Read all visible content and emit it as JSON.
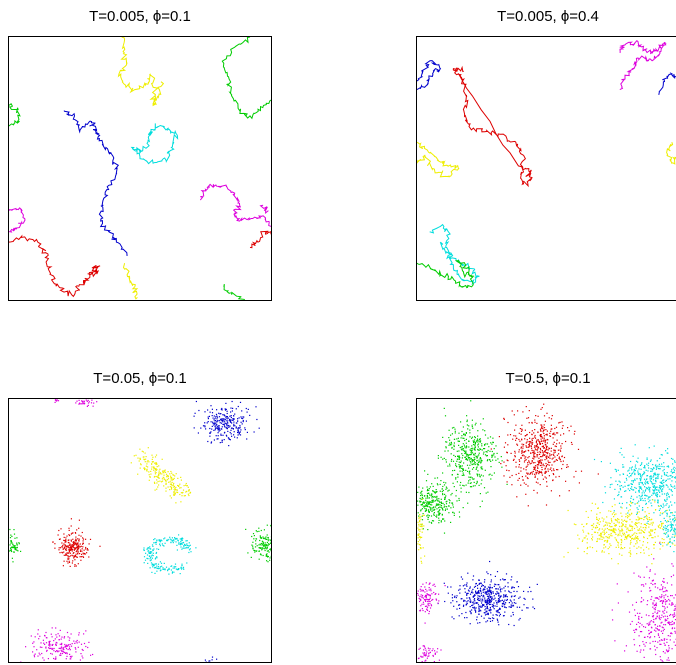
{
  "chart_data": [
    {
      "type": "scatter",
      "title": "T=0.005, ϕ=0.1",
      "xlim": [
        0,
        1
      ],
      "ylim": [
        0,
        1
      ],
      "grid": false,
      "legend": "none",
      "style": "line",
      "series": [
        {
          "color": "#0000cc",
          "points": [
            [
              0.21,
              0.72
            ],
            [
              0.25,
              0.7
            ],
            [
              0.27,
              0.64
            ],
            [
              0.31,
              0.68
            ],
            [
              0.33,
              0.66
            ],
            [
              0.34,
              0.62
            ],
            [
              0.37,
              0.58
            ],
            [
              0.4,
              0.54
            ],
            [
              0.41,
              0.48
            ],
            [
              0.38,
              0.42
            ],
            [
              0.36,
              0.36
            ],
            [
              0.35,
              0.3
            ],
            [
              0.38,
              0.26
            ],
            [
              0.41,
              0.22
            ],
            [
              0.45,
              0.17
            ]
          ]
        },
        {
          "color": "#00dddd",
          "points": [
            [
              0.47,
              0.58
            ],
            [
              0.5,
              0.56
            ],
            [
              0.53,
              0.6
            ],
            [
              0.54,
              0.64
            ],
            [
              0.57,
              0.66
            ],
            [
              0.61,
              0.65
            ],
            [
              0.64,
              0.63
            ],
            [
              0.62,
              0.58
            ],
            [
              0.6,
              0.53
            ],
            [
              0.55,
              0.52
            ],
            [
              0.5,
              0.54
            ],
            [
              0.47,
              0.58
            ]
          ]
        },
        {
          "color": "#eeee00",
          "points": [
            [
              0.43,
              1.0
            ],
            [
              0.44,
              0.94
            ],
            [
              0.45,
              0.9
            ],
            [
              0.42,
              0.86
            ],
            [
              0.44,
              0.82
            ],
            [
              0.48,
              0.8
            ],
            [
              0.53,
              0.82
            ],
            [
              0.54,
              0.86
            ],
            [
              0.56,
              0.78
            ],
            [
              0.55,
              0.74
            ],
            [
              0.57,
              0.77
            ],
            [
              0.58,
              0.83
            ]
          ]
        },
        {
          "color": "#eeee00",
          "points": [
            [
              0.44,
              0.14
            ],
            [
              0.46,
              0.09
            ],
            [
              0.48,
              0.05
            ],
            [
              0.49,
              0.01
            ]
          ]
        },
        {
          "color": "#00cc00",
          "points": [
            [
              0.92,
              1.0
            ],
            [
              0.86,
              0.96
            ],
            [
              0.82,
              0.9
            ],
            [
              0.84,
              0.84
            ],
            [
              0.85,
              0.78
            ],
            [
              0.88,
              0.72
            ],
            [
              0.92,
              0.7
            ],
            [
              0.96,
              0.72
            ],
            [
              1.0,
              0.76
            ]
          ]
        },
        {
          "color": "#00cc00",
          "points": [
            [
              0.82,
              0.05
            ],
            [
              0.85,
              0.02
            ],
            [
              0.9,
              0.0
            ]
          ]
        },
        {
          "color": "#00cc00",
          "points": [
            [
              0.0,
              0.74
            ],
            [
              0.03,
              0.72
            ],
            [
              0.04,
              0.68
            ],
            [
              0.0,
              0.66
            ]
          ]
        },
        {
          "color": "#dd00dd",
          "points": [
            [
              0.73,
              0.38
            ],
            [
              0.75,
              0.42
            ],
            [
              0.78,
              0.44
            ],
            [
              0.83,
              0.43
            ],
            [
              0.86,
              0.4
            ],
            [
              0.88,
              0.36
            ],
            [
              0.86,
              0.33
            ],
            [
              0.88,
              0.3
            ],
            [
              0.93,
              0.31
            ],
            [
              0.97,
              0.32
            ],
            [
              1.0,
              0.28
            ]
          ]
        },
        {
          "color": "#dd00dd",
          "points": [
            [
              0.0,
              0.34
            ],
            [
              0.04,
              0.35
            ],
            [
              0.06,
              0.31
            ],
            [
              0.03,
              0.27
            ],
            [
              0.0,
              0.26
            ]
          ]
        },
        {
          "color": "#dd00dd",
          "points": [
            [
              0.97,
              0.36
            ],
            [
              0.99,
              0.34
            ]
          ]
        },
        {
          "color": "#dd0000",
          "points": [
            [
              0.0,
              0.22
            ],
            [
              0.06,
              0.24
            ],
            [
              0.11,
              0.22
            ],
            [
              0.14,
              0.18
            ],
            [
              0.15,
              0.12
            ],
            [
              0.18,
              0.06
            ],
            [
              0.21,
              0.03
            ],
            [
              0.25,
              0.02
            ],
            [
              0.27,
              0.06
            ],
            [
              0.3,
              0.08
            ],
            [
              0.33,
              0.13
            ],
            [
              0.34,
              0.11
            ],
            [
              0.3,
              0.1
            ]
          ]
        },
        {
          "color": "#dd0000",
          "points": [
            [
              0.92,
              0.2
            ],
            [
              0.95,
              0.22
            ],
            [
              0.97,
              0.26
            ],
            [
              1.0,
              0.25
            ]
          ]
        }
      ]
    },
    {
      "type": "scatter",
      "title": "T=0.005, ϕ=0.4",
      "xlim": [
        0,
        1
      ],
      "ylim": [
        0,
        1
      ],
      "grid": false,
      "legend": "none",
      "style": "line",
      "series": [
        {
          "color": "#0000cc",
          "points": [
            [
              0.0,
              0.8
            ],
            [
              0.04,
              0.82
            ],
            [
              0.06,
              0.86
            ],
            [
              0.09,
              0.88
            ],
            [
              0.05,
              0.91
            ],
            [
              0.02,
              0.86
            ],
            [
              0.0,
              0.83
            ]
          ]
        },
        {
          "color": "#0000cc",
          "points": [
            [
              0.93,
              0.78
            ],
            [
              0.95,
              0.84
            ],
            [
              0.98,
              0.86
            ],
            [
              1.0,
              0.84
            ]
          ]
        },
        {
          "color": "#dd0000",
          "points": [
            [
              0.16,
              0.86
            ],
            [
              0.18,
              0.84
            ],
            [
              0.19,
              0.78
            ],
            [
              0.18,
              0.72
            ],
            [
              0.2,
              0.66
            ],
            [
              0.26,
              0.64
            ],
            [
              0.32,
              0.63
            ],
            [
              0.38,
              0.6
            ],
            [
              0.41,
              0.55
            ],
            [
              0.4,
              0.48
            ],
            [
              0.41,
              0.44
            ],
            [
              0.44,
              0.46
            ],
            [
              0.43,
              0.49
            ],
            [
              0.39,
              0.51
            ],
            [
              0.16,
              0.86
            ],
            [
              0.14,
              0.88
            ],
            [
              0.18,
              0.87
            ]
          ]
        },
        {
          "color": "#dd00dd",
          "points": [
            [
              0.78,
              0.94
            ],
            [
              0.8,
              0.97
            ],
            [
              0.84,
              0.98
            ],
            [
              0.87,
              0.96
            ],
            [
              0.9,
              0.94
            ],
            [
              0.92,
              0.95
            ],
            [
              0.95,
              0.98
            ],
            [
              0.93,
              0.93
            ],
            [
              0.89,
              0.91
            ],
            [
              0.85,
              0.92
            ],
            [
              0.83,
              0.88
            ],
            [
              0.8,
              0.84
            ],
            [
              0.78,
              0.8
            ]
          ]
        },
        {
          "color": "#eeee00",
          "points": [
            [
              0.0,
              0.6
            ],
            [
              0.04,
              0.57
            ],
            [
              0.08,
              0.53
            ],
            [
              0.12,
              0.51
            ],
            [
              0.16,
              0.5
            ],
            [
              0.11,
              0.47
            ],
            [
              0.06,
              0.5
            ],
            [
              0.03,
              0.55
            ],
            [
              0.0,
              0.52
            ]
          ]
        },
        {
          "color": "#eeee00",
          "points": [
            [
              0.98,
              0.6
            ],
            [
              0.96,
              0.56
            ],
            [
              0.98,
              0.52
            ],
            [
              1.0,
              0.55
            ]
          ]
        },
        {
          "color": "#00dddd",
          "points": [
            [
              0.05,
              0.26
            ],
            [
              0.09,
              0.28
            ],
            [
              0.12,
              0.26
            ],
            [
              0.11,
              0.2
            ],
            [
              0.13,
              0.16
            ],
            [
              0.17,
              0.14
            ],
            [
              0.2,
              0.12
            ],
            [
              0.24,
              0.09
            ],
            [
              0.21,
              0.07
            ],
            [
              0.17,
              0.08
            ],
            [
              0.14,
              0.12
            ],
            [
              0.12,
              0.17
            ],
            [
              0.09,
              0.22
            ]
          ]
        },
        {
          "color": "#00cc00",
          "points": [
            [
              0.0,
              0.14
            ],
            [
              0.05,
              0.12
            ],
            [
              0.09,
              0.1
            ],
            [
              0.13,
              0.08
            ],
            [
              0.17,
              0.05
            ],
            [
              0.21,
              0.05
            ],
            [
              0.2,
              0.11
            ],
            [
              0.16,
              0.15
            ],
            [
              0.18,
              0.1
            ],
            [
              0.22,
              0.09
            ]
          ]
        }
      ]
    },
    {
      "type": "scatter",
      "title": "T=0.05, ϕ=0.1",
      "xlim": [
        0,
        1
      ],
      "ylim": [
        0,
        1
      ],
      "grid": false,
      "legend": "none",
      "style": "cloud",
      "clusters": [
        {
          "color": "#0000cc",
          "cx": 0.82,
          "cy": 0.91,
          "sx": 0.04,
          "sy": 0.035,
          "n": 260,
          "seed": 11
        },
        {
          "color": "#eeee00",
          "cx": 0.58,
          "cy": 0.71,
          "sx": 0.05,
          "sy": 0.04,
          "n": 220,
          "seed": 12,
          "stretch": [
            0.08,
            -0.07
          ]
        },
        {
          "color": "#dd0000",
          "cx": 0.24,
          "cy": 0.44,
          "sx": 0.03,
          "sy": 0.03,
          "n": 240,
          "seed": 13
        },
        {
          "color": "#00dddd",
          "cx": 0.61,
          "cy": 0.41,
          "sx": 0.055,
          "sy": 0.04,
          "n": 220,
          "seed": 14,
          "ring": true
        },
        {
          "color": "#00cc00",
          "cx": 0.97,
          "cy": 0.45,
          "sx": 0.025,
          "sy": 0.028,
          "n": 140,
          "seed": 15
        },
        {
          "color": "#00cc00",
          "cx": 0.01,
          "cy": 0.44,
          "sx": 0.015,
          "sy": 0.025,
          "n": 70,
          "seed": 16
        },
        {
          "color": "#dd00dd",
          "cx": 0.19,
          "cy": 0.06,
          "sx": 0.05,
          "sy": 0.03,
          "n": 180,
          "seed": 17
        },
        {
          "color": "#dd00dd",
          "cx": 0.29,
          "cy": 0.99,
          "sx": 0.02,
          "sy": 0.012,
          "n": 40,
          "seed": 18
        },
        {
          "color": "#dd00dd",
          "cx": 0.18,
          "cy": 1.0,
          "sx": 0.012,
          "sy": 0.006,
          "n": 15,
          "seed": 19
        },
        {
          "color": "#0000cc",
          "cx": 0.76,
          "cy": 0.01,
          "sx": 0.01,
          "sy": 0.005,
          "n": 8,
          "seed": 20
        }
      ]
    },
    {
      "type": "scatter",
      "title": "T=0.5, ϕ=0.1",
      "xlim": [
        0,
        1
      ],
      "ylim": [
        0,
        1
      ],
      "grid": false,
      "legend": "none",
      "style": "cloud",
      "clusters": [
        {
          "color": "#dd0000",
          "cx": 0.46,
          "cy": 0.8,
          "sx": 0.06,
          "sy": 0.065,
          "n": 520,
          "seed": 31
        },
        {
          "color": "#00cc00",
          "cx": 0.2,
          "cy": 0.78,
          "sx": 0.05,
          "sy": 0.065,
          "n": 420,
          "seed": 32
        },
        {
          "color": "#00cc00",
          "cx": 0.06,
          "cy": 0.6,
          "sx": 0.045,
          "sy": 0.04,
          "n": 300,
          "seed": 33
        },
        {
          "color": "#00dddd",
          "cx": 0.9,
          "cy": 0.68,
          "sx": 0.07,
          "sy": 0.055,
          "n": 500,
          "seed": 34
        },
        {
          "color": "#eeee00",
          "cx": 0.8,
          "cy": 0.5,
          "sx": 0.09,
          "sy": 0.045,
          "n": 460,
          "seed": 35
        },
        {
          "color": "#eeee00",
          "cx": 0.01,
          "cy": 0.5,
          "sx": 0.01,
          "sy": 0.05,
          "n": 60,
          "seed": 36
        },
        {
          "color": "#0000cc",
          "cx": 0.27,
          "cy": 0.24,
          "sx": 0.065,
          "sy": 0.04,
          "n": 480,
          "seed": 37
        },
        {
          "color": "#dd00dd",
          "cx": 0.94,
          "cy": 0.17,
          "sx": 0.06,
          "sy": 0.09,
          "n": 420,
          "seed": 38
        },
        {
          "color": "#dd00dd",
          "cx": 0.03,
          "cy": 0.25,
          "sx": 0.025,
          "sy": 0.03,
          "n": 110,
          "seed": 39
        },
        {
          "color": "#dd00dd",
          "cx": 0.03,
          "cy": 0.03,
          "sx": 0.02,
          "sy": 0.02,
          "n": 60,
          "seed": 40
        },
        {
          "color": "#00dddd",
          "cx": 0.98,
          "cy": 0.52,
          "sx": 0.02,
          "sy": 0.04,
          "n": 90,
          "seed": 41
        }
      ]
    }
  ]
}
